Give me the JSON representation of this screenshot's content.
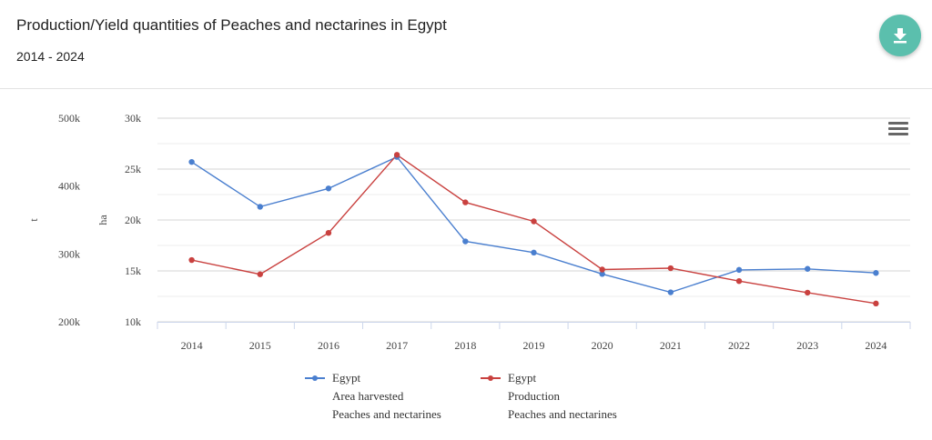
{
  "header": {
    "title": "Production/Yield quantities of Peaches and nectarines in Egypt",
    "subtitle": "2014 - 2024"
  },
  "colors": {
    "area": "#4a7fcf",
    "production": "#c9413f",
    "download_bg": "#5bbfad"
  },
  "icons": {
    "download": "download-icon",
    "menu": "hamburger-menu-icon"
  },
  "chart_data": {
    "type": "line",
    "title": "Production/Yield quantities of Peaches and nectarines in Egypt",
    "subtitle": "2014 - 2024",
    "x": [
      "2014",
      "2015",
      "2016",
      "2017",
      "2018",
      "2019",
      "2020",
      "2021",
      "2022",
      "2023",
      "2024"
    ],
    "axes": {
      "left_outer": {
        "label": "t",
        "ticks": [
          "200k",
          "300k",
          "400k",
          "500k"
        ],
        "range": [
          200000,
          500000
        ]
      },
      "left_inner": {
        "label": "ha",
        "ticks": [
          "10k",
          "15k",
          "20k",
          "25k",
          "30k"
        ],
        "range": [
          10000,
          30000
        ]
      }
    },
    "series": [
      {
        "name": "Egypt",
        "line2": "Area harvested",
        "line3": "Peaches and nectarines",
        "axis": "ha",
        "color": "#4a7fcf",
        "values": [
          25700,
          21300,
          23100,
          26200,
          17900,
          16800,
          14700,
          12900,
          15100,
          15200,
          14800
        ]
      },
      {
        "name": "Egypt",
        "line2": "Production",
        "line3": "Peaches and nectarines",
        "axis": "t",
        "color": "#c9413f",
        "values": [
          291000,
          270000,
          331000,
          446000,
          376000,
          348000,
          277000,
          279000,
          260000,
          243000,
          227000
        ]
      }
    ],
    "legend_position": "bottom-center",
    "grid": true
  }
}
